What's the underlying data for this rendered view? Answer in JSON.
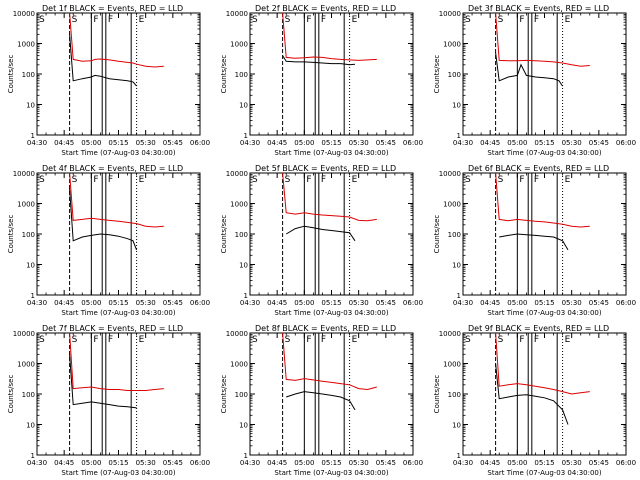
{
  "figure": {
    "common": {
      "ylabel": "Counts/sec",
      "xlabel": "Start Time (07-Aug-03 04:30:00)",
      "title_suffix": "BLACK = Events, RED = LLD",
      "x_tick_labels": [
        "04:30",
        "04:45",
        "05:00",
        "05:15",
        "05:30",
        "05:45",
        "06:00"
      ],
      "y_tick_labels": [
        "1",
        "10",
        "100",
        "1000",
        "10000"
      ],
      "marker_letters": [
        "S",
        "F",
        "F",
        "E"
      ],
      "colors": {
        "events": "#000000",
        "lld": "#dd0000",
        "axis": "#000000"
      }
    }
  },
  "chart_data": [
    {
      "type": "line",
      "title": "Det 1f",
      "scale": "log",
      "ylim": [
        1,
        10000
      ],
      "xlim_minutes": [
        0,
        90
      ],
      "x_start": "04:30",
      "x_end": "06:00",
      "markers": {
        "dashed": [
          18
        ],
        "solid": [
          30,
          36,
          38,
          52
        ],
        "dotted": [
          55
        ]
      },
      "series": [
        {
          "name": "BLACK = Events",
          "x": [
            18,
            20,
            25,
            30,
            32,
            35,
            40,
            45,
            50,
            53,
            55
          ],
          "values": [
            2000,
            60,
            70,
            80,
            90,
            85,
            70,
            65,
            60,
            55,
            40
          ]
        },
        {
          "name": "RED = LLD",
          "x": [
            18,
            20,
            25,
            30,
            32,
            35,
            40,
            45,
            50,
            53,
            55,
            60,
            65,
            70
          ],
          "values": [
            10000,
            300,
            260,
            270,
            300,
            310,
            290,
            260,
            240,
            230,
            210,
            180,
            170,
            180
          ]
        }
      ]
    },
    {
      "type": "line",
      "title": "Det 2f",
      "scale": "log",
      "ylim": [
        1,
        10000
      ],
      "xlim_minutes": [
        0,
        90
      ],
      "x_start": "04:30",
      "x_end": "06:00",
      "markers": {
        "dashed": [
          18
        ],
        "solid": [
          30,
          36,
          38,
          52
        ],
        "dotted": [
          55
        ]
      },
      "series": [
        {
          "name": "BLACK = Events",
          "x": [
            18,
            20,
            25,
            30,
            35,
            40,
            45,
            50,
            53,
            55,
            58
          ],
          "values": [
            400,
            260,
            250,
            250,
            240,
            230,
            220,
            220,
            210,
            200,
            210
          ]
        },
        {
          "name": "RED = LLD",
          "x": [
            18,
            20,
            25,
            30,
            35,
            40,
            45,
            50,
            55,
            60,
            65,
            70
          ],
          "values": [
            10000,
            350,
            330,
            340,
            360,
            350,
            320,
            300,
            290,
            280,
            290,
            300
          ]
        }
      ]
    },
    {
      "type": "line",
      "title": "Det 3f",
      "scale": "log",
      "ylim": [
        1,
        10000
      ],
      "xlim_minutes": [
        0,
        90
      ],
      "x_start": "04:30",
      "x_end": "06:00",
      "markers": {
        "dashed": [
          18
        ],
        "solid": [
          30,
          36,
          38,
          52
        ],
        "dotted": [
          55
        ]
      },
      "series": [
        {
          "name": "BLACK = Events",
          "x": [
            18,
            20,
            25,
            30,
            32,
            35,
            40,
            45,
            50,
            53,
            55
          ],
          "values": [
            500,
            60,
            80,
            90,
            200,
            90,
            80,
            75,
            70,
            60,
            40
          ]
        },
        {
          "name": "RED = LLD",
          "x": [
            18,
            20,
            25,
            30,
            35,
            40,
            45,
            50,
            55,
            60,
            65,
            70
          ],
          "values": [
            10000,
            280,
            270,
            270,
            280,
            270,
            260,
            250,
            230,
            200,
            180,
            190
          ]
        }
      ]
    },
    {
      "type": "line",
      "title": "Det 4f",
      "scale": "log",
      "ylim": [
        1,
        10000
      ],
      "xlim_minutes": [
        0,
        90
      ],
      "x_start": "04:30",
      "x_end": "06:00",
      "markers": {
        "dashed": [
          18
        ],
        "solid": [
          30,
          36,
          38,
          52
        ],
        "dotted": [
          55
        ]
      },
      "series": [
        {
          "name": "BLACK = Events",
          "x": [
            18,
            20,
            25,
            30,
            35,
            40,
            45,
            50,
            53,
            55
          ],
          "values": [
            3000,
            60,
            80,
            90,
            100,
            95,
            85,
            70,
            60,
            30
          ]
        },
        {
          "name": "RED = LLD",
          "x": [
            18,
            20,
            25,
            30,
            35,
            40,
            45,
            50,
            55,
            60,
            65,
            70
          ],
          "values": [
            10000,
            280,
            300,
            330,
            300,
            280,
            260,
            240,
            220,
            180,
            170,
            180
          ]
        }
      ]
    },
    {
      "type": "line",
      "title": "Det 5f",
      "scale": "log",
      "ylim": [
        1,
        10000
      ],
      "xlim_minutes": [
        0,
        90
      ],
      "x_start": "04:30",
      "x_end": "06:00",
      "markers": {
        "dashed": [
          18
        ],
        "solid": [
          30,
          36,
          38,
          52
        ],
        "dotted": [
          55
        ]
      },
      "series": [
        {
          "name": "BLACK = Events",
          "x": [
            20,
            25,
            30,
            35,
            40,
            45,
            50,
            55,
            58
          ],
          "values": [
            100,
            150,
            180,
            160,
            140,
            130,
            120,
            110,
            60
          ]
        },
        {
          "name": "RED = LLD",
          "x": [
            18,
            20,
            25,
            30,
            35,
            40,
            45,
            50,
            55,
            60,
            65,
            70
          ],
          "values": [
            10000,
            500,
            450,
            500,
            450,
            420,
            400,
            380,
            360,
            280,
            270,
            300
          ]
        }
      ]
    },
    {
      "type": "line",
      "title": "Det 6f",
      "scale": "log",
      "ylim": [
        1,
        10000
      ],
      "xlim_minutes": [
        0,
        90
      ],
      "x_start": "04:30",
      "x_end": "06:00",
      "markers": {
        "dashed": [
          18
        ],
        "solid": [
          30,
          36,
          38,
          52
        ],
        "dotted": [
          55
        ]
      },
      "series": [
        {
          "name": "BLACK = Events",
          "x": [
            20,
            25,
            30,
            35,
            40,
            45,
            50,
            55,
            58
          ],
          "values": [
            80,
            90,
            100,
            95,
            90,
            85,
            80,
            60,
            30
          ]
        },
        {
          "name": "RED = LLD",
          "x": [
            18,
            20,
            25,
            30,
            35,
            40,
            45,
            50,
            55,
            60,
            65,
            70
          ],
          "values": [
            10000,
            300,
            270,
            300,
            280,
            260,
            250,
            230,
            210,
            180,
            170,
            180
          ]
        }
      ]
    },
    {
      "type": "line",
      "title": "Det 7f",
      "scale": "log",
      "ylim": [
        1,
        10000
      ],
      "xlim_minutes": [
        0,
        90
      ],
      "x_start": "04:30",
      "x_end": "06:00",
      "markers": {
        "dashed": [
          18
        ],
        "solid": [
          30,
          36,
          38,
          52
        ],
        "dotted": [
          55
        ]
      },
      "series": [
        {
          "name": "BLACK = Events",
          "x": [
            18,
            20,
            25,
            30,
            35,
            40,
            45,
            50,
            55
          ],
          "values": [
            2000,
            45,
            50,
            55,
            50,
            45,
            40,
            38,
            35
          ]
        },
        {
          "name": "RED = LLD",
          "x": [
            18,
            20,
            25,
            30,
            35,
            40,
            45,
            50,
            55,
            60,
            65,
            70
          ],
          "values": [
            10000,
            150,
            160,
            170,
            150,
            140,
            140,
            130,
            130,
            130,
            140,
            150
          ]
        }
      ]
    },
    {
      "type": "line",
      "title": "Det 8f",
      "scale": "log",
      "ylim": [
        1,
        10000
      ],
      "xlim_minutes": [
        0,
        90
      ],
      "x_start": "04:30",
      "x_end": "06:00",
      "markers": {
        "dashed": [
          18
        ],
        "solid": [
          30,
          36,
          38,
          52
        ],
        "dotted": [
          55
        ]
      },
      "series": [
        {
          "name": "BLACK = Events",
          "x": [
            20,
            25,
            30,
            35,
            40,
            45,
            50,
            55,
            58
          ],
          "values": [
            80,
            100,
            120,
            110,
            100,
            90,
            80,
            60,
            30
          ]
        },
        {
          "name": "RED = LLD",
          "x": [
            18,
            20,
            25,
            30,
            35,
            40,
            45,
            50,
            55,
            60,
            65,
            70
          ],
          "values": [
            10000,
            300,
            280,
            320,
            290,
            260,
            240,
            220,
            200,
            150,
            140,
            170
          ]
        }
      ]
    },
    {
      "type": "line",
      "title": "Det 9f",
      "scale": "log",
      "ylim": [
        1,
        10000
      ],
      "xlim_minutes": [
        0,
        90
      ],
      "x_start": "04:30",
      "x_end": "06:00",
      "markers": {
        "dashed": [
          18
        ],
        "solid": [
          30,
          36,
          38,
          52
        ],
        "dotted": [
          55
        ]
      },
      "series": [
        {
          "name": "BLACK = Events",
          "x": [
            18,
            20,
            25,
            30,
            35,
            40,
            45,
            50,
            55,
            58
          ],
          "values": [
            1000,
            70,
            80,
            90,
            95,
            85,
            75,
            60,
            30,
            10
          ]
        },
        {
          "name": "RED = LLD",
          "x": [
            18,
            20,
            25,
            30,
            35,
            40,
            45,
            50,
            55,
            60,
            65,
            70
          ],
          "values": [
            10000,
            180,
            200,
            220,
            200,
            180,
            160,
            140,
            120,
            100,
            110,
            120
          ]
        }
      ]
    }
  ]
}
